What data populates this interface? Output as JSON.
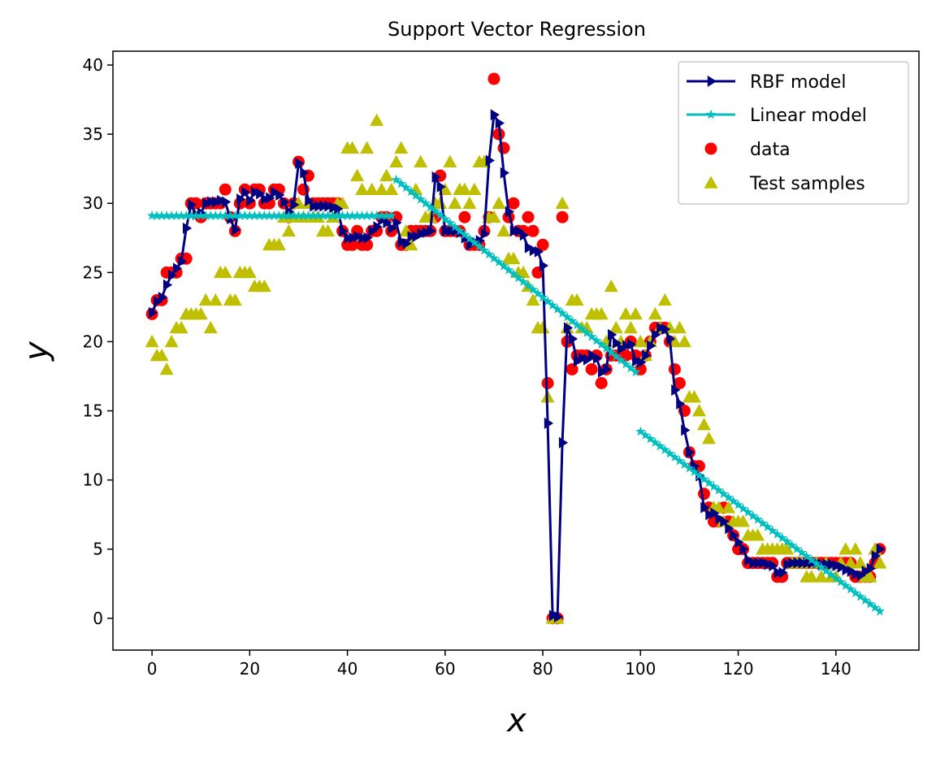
{
  "chart_data": {
    "type": "scatter",
    "title": "Support Vector Regression",
    "xlabel": "x",
    "ylabel": "y",
    "xlim": [
      -8,
      157
    ],
    "ylim": [
      -2.3,
      41
    ],
    "xticks": [
      0,
      20,
      40,
      60,
      80,
      100,
      120,
      140
    ],
    "yticks": [
      0,
      5,
      10,
      15,
      20,
      25,
      30,
      35,
      40
    ],
    "grid": false,
    "legend_position": "top-right",
    "series": [
      {
        "name": "data",
        "kind": "scatter",
        "marker": "circle",
        "color": "#ff0000",
        "x": [
          0,
          1,
          2,
          3,
          4,
          5,
          6,
          7,
          8,
          9,
          10,
          11,
          12,
          13,
          14,
          15,
          16,
          17,
          18,
          19,
          20,
          21,
          22,
          23,
          24,
          25,
          26,
          27,
          28,
          29,
          30,
          31,
          32,
          33,
          34,
          35,
          36,
          37,
          38,
          39,
          40,
          41,
          42,
          43,
          44,
          45,
          46,
          47,
          48,
          49,
          50,
          51,
          52,
          53,
          54,
          55,
          56,
          57,
          58,
          59,
          60,
          61,
          62,
          63,
          64,
          65,
          66,
          67,
          68,
          69,
          70,
          71,
          72,
          73,
          74,
          75,
          76,
          77,
          78,
          79,
          80,
          81,
          82,
          83,
          84,
          85,
          86,
          87,
          88,
          89,
          90,
          91,
          92,
          93,
          94,
          95,
          96,
          97,
          98,
          99,
          100,
          101,
          102,
          103,
          104,
          105,
          106,
          107,
          108,
          109,
          110,
          111,
          112,
          113,
          114,
          115,
          116,
          117,
          118,
          119,
          120,
          121,
          122,
          123,
          124,
          125,
          126,
          127,
          128,
          129,
          130,
          131,
          132,
          133,
          134,
          135,
          136,
          137,
          138,
          139,
          140,
          141,
          142,
          143,
          144,
          145,
          146,
          147,
          148,
          149
        ],
        "y": [
          22,
          23,
          23,
          25,
          25,
          25,
          26,
          26,
          30,
          30,
          29,
          30,
          30,
          30,
          30,
          31,
          29,
          28,
          30,
          31,
          30,
          31,
          31,
          30,
          30,
          31,
          31,
          30,
          29,
          30,
          33,
          31,
          32,
          30,
          30,
          30,
          30,
          30,
          30,
          28,
          27,
          27,
          28,
          27,
          27,
          28,
          28,
          29,
          29,
          28,
          29,
          27,
          27,
          28,
          28,
          28,
          28,
          28,
          29,
          32,
          28,
          28,
          28,
          28,
          29,
          27,
          27,
          27,
          28,
          29,
          39,
          35,
          34,
          29,
          30,
          28,
          28,
          29,
          28,
          25,
          27,
          17,
          0,
          0,
          29,
          20,
          18,
          19,
          19,
          19,
          18,
          19,
          17,
          18,
          19,
          19,
          19,
          19,
          20,
          19,
          18,
          19,
          20,
          21,
          21,
          21,
          20,
          18,
          17,
          15,
          12,
          11,
          11,
          9,
          8,
          7,
          7,
          8,
          7,
          6,
          5,
          5,
          4,
          4,
          4,
          4,
          4,
          4,
          3,
          3,
          4,
          4,
          4,
          4,
          4,
          4,
          4,
          4,
          4,
          4,
          4,
          4,
          4,
          4,
          3,
          3,
          3,
          3,
          4,
          5
        ]
      },
      {
        "name": "Test samples",
        "kind": "scatter",
        "marker": "triangle",
        "color": "#bfbf00",
        "x": [
          0,
          1,
          2,
          3,
          4,
          5,
          6,
          7,
          8,
          9,
          10,
          11,
          12,
          13,
          14,
          15,
          16,
          17,
          18,
          19,
          20,
          21,
          22,
          23,
          24,
          25,
          26,
          27,
          28,
          29,
          30,
          31,
          32,
          33,
          34,
          35,
          36,
          37,
          38,
          39,
          40,
          41,
          42,
          43,
          44,
          45,
          46,
          47,
          48,
          49,
          50,
          51,
          52,
          53,
          54,
          55,
          56,
          57,
          58,
          59,
          60,
          61,
          62,
          63,
          64,
          65,
          66,
          67,
          68,
          69,
          70,
          71,
          72,
          73,
          74,
          75,
          76,
          77,
          78,
          79,
          80,
          81,
          82,
          83,
          84,
          85,
          86,
          87,
          88,
          89,
          90,
          91,
          92,
          93,
          94,
          95,
          96,
          97,
          98,
          99,
          100,
          101,
          102,
          103,
          104,
          105,
          106,
          107,
          108,
          109,
          110,
          111,
          112,
          113,
          114,
          115,
          116,
          117,
          118,
          119,
          120,
          121,
          122,
          123,
          124,
          125,
          126,
          127,
          128,
          129,
          130,
          131,
          132,
          133,
          134,
          135,
          136,
          137,
          138,
          139,
          140,
          141,
          142,
          143,
          144,
          145,
          146,
          147,
          148,
          149
        ],
        "y": [
          20,
          19,
          19,
          18,
          20,
          21,
          21,
          22,
          22,
          22,
          22,
          23,
          21,
          23,
          25,
          25,
          23,
          23,
          25,
          25,
          25,
          24,
          24,
          24,
          27,
          27,
          27,
          29,
          28,
          29,
          30,
          29,
          30,
          29,
          29,
          28,
          28,
          29,
          30,
          30,
          34,
          34,
          32,
          31,
          34,
          31,
          36,
          31,
          32,
          31,
          33,
          34,
          28,
          27,
          31,
          33,
          29,
          29,
          30,
          30,
          31,
          33,
          30,
          31,
          31,
          30,
          31,
          33,
          33,
          29,
          29,
          30,
          28,
          26,
          26,
          25,
          25,
          24,
          23,
          21,
          21,
          16,
          0,
          0,
          30,
          21,
          23,
          23,
          21,
          21,
          22,
          22,
          22,
          20,
          24,
          21,
          20,
          22,
          21,
          22,
          20,
          19,
          20,
          22,
          21,
          23,
          21,
          20,
          21,
          20,
          16,
          16,
          15,
          14,
          13,
          8,
          8,
          7,
          8,
          7,
          7,
          7,
          6,
          6,
          6,
          5,
          5,
          5,
          5,
          5,
          5,
          4,
          4,
          4,
          3,
          3,
          4,
          3,
          4,
          3,
          3,
          4,
          5,
          4,
          5,
          4,
          3,
          3,
          5,
          4
        ]
      },
      {
        "name": "RBF model",
        "kind": "line",
        "marker": "triangle-right",
        "color": "#000080",
        "x": [
          0,
          1,
          2,
          3,
          4,
          5,
          6,
          7,
          8,
          9,
          10,
          11,
          12,
          13,
          14,
          15,
          16,
          17,
          18,
          19,
          20,
          21,
          22,
          23,
          24,
          25,
          26,
          27,
          28,
          29,
          30,
          31,
          32,
          33,
          34,
          35,
          36,
          37,
          38,
          39,
          40,
          41,
          42,
          43,
          44,
          45,
          46,
          47,
          48,
          49,
          50,
          51,
          52,
          53,
          54,
          55,
          56,
          57,
          58,
          59,
          60,
          61,
          62,
          63,
          64,
          65,
          66,
          67,
          68,
          69,
          70,
          71,
          72,
          73,
          74,
          75,
          76,
          77,
          78,
          79,
          80,
          81,
          82,
          83,
          84,
          85,
          86,
          87,
          88,
          89,
          90,
          91,
          92,
          93,
          94,
          95,
          96,
          97,
          98,
          99,
          100,
          101,
          102,
          103,
          104,
          105,
          106,
          107,
          108,
          109,
          110,
          111,
          112,
          113,
          114,
          115,
          116,
          117,
          118,
          119,
          120,
          121,
          122,
          123,
          124,
          125,
          126,
          127,
          128,
          129,
          130,
          131,
          132,
          133,
          134,
          135,
          136,
          137,
          138,
          139,
          140,
          141,
          142,
          143,
          144,
          145,
          146,
          147,
          148,
          149
        ],
        "y": [
          22.1,
          22.9,
          23.2,
          24.1,
          24.8,
          25.3,
          25.8,
          28.2,
          29.9,
          29.2,
          29.3,
          30.0,
          30.1,
          30.1,
          30.2,
          30.1,
          28.9,
          28.1,
          30.3,
          30.8,
          30.2,
          30.8,
          30.7,
          30.3,
          30.4,
          30.8,
          30.6,
          30.1,
          29.4,
          29.9,
          32.9,
          32.2,
          30.2,
          29.8,
          29.8,
          29.8,
          29.8,
          29.7,
          29.6,
          28.0,
          27.5,
          27.5,
          27.6,
          27.5,
          27.5,
          28.0,
          28.3,
          28.8,
          28.6,
          28.2,
          28.6,
          27.2,
          27.1,
          27.6,
          27.6,
          27.8,
          27.9,
          28.0,
          31.9,
          31.2,
          28.0,
          28.0,
          28.0,
          27.9,
          27.5,
          27.0,
          27.2,
          27.3,
          27.8,
          33.1,
          36.4,
          35.8,
          32.2,
          29.4,
          28.0,
          28.0,
          27.7,
          26.8,
          26.6,
          26.5,
          25.5,
          14.1,
          0.2,
          0.1,
          12.7,
          21.0,
          20.2,
          18.6,
          18.8,
          18.7,
          19.0,
          18.8,
          17.8,
          18.0,
          20.5,
          19.9,
          19.5,
          19.7,
          19.8,
          18.6,
          18.5,
          19.0,
          19.7,
          20.5,
          21.0,
          20.9,
          20.2,
          16.5,
          15.5,
          13.6,
          12.0,
          11.0,
          10.3,
          8.0,
          7.5,
          7.6,
          7.2,
          7.0,
          6.5,
          6.0,
          5.5,
          5.0,
          4.2,
          4.0,
          4.0,
          4.0,
          3.9,
          3.8,
          3.3,
          3.3,
          3.9,
          4.0,
          4.0,
          4.0,
          4.0,
          4.0,
          4.0,
          3.9,
          3.9,
          3.9,
          3.8,
          3.7,
          3.5,
          3.4,
          3.2,
          3.1,
          3.4,
          3.6,
          4.5,
          5.0
        ]
      },
      {
        "name": "Linear model",
        "kind": "line",
        "marker": "star",
        "color": "#00bfbf",
        "segments": [
          {
            "x_range": [
              0,
              49
            ],
            "y_start": 29.1,
            "y_end": 29.1
          },
          {
            "x_range": [
              50,
              99
            ],
            "y_start": 31.7,
            "y_end": 17.8
          },
          {
            "x_range": [
              100,
              149
            ],
            "y_start": 13.5,
            "y_end": 0.5
          }
        ]
      }
    ],
    "legend": [
      "RBF model",
      "Linear model",
      "data",
      "Test samples"
    ]
  }
}
